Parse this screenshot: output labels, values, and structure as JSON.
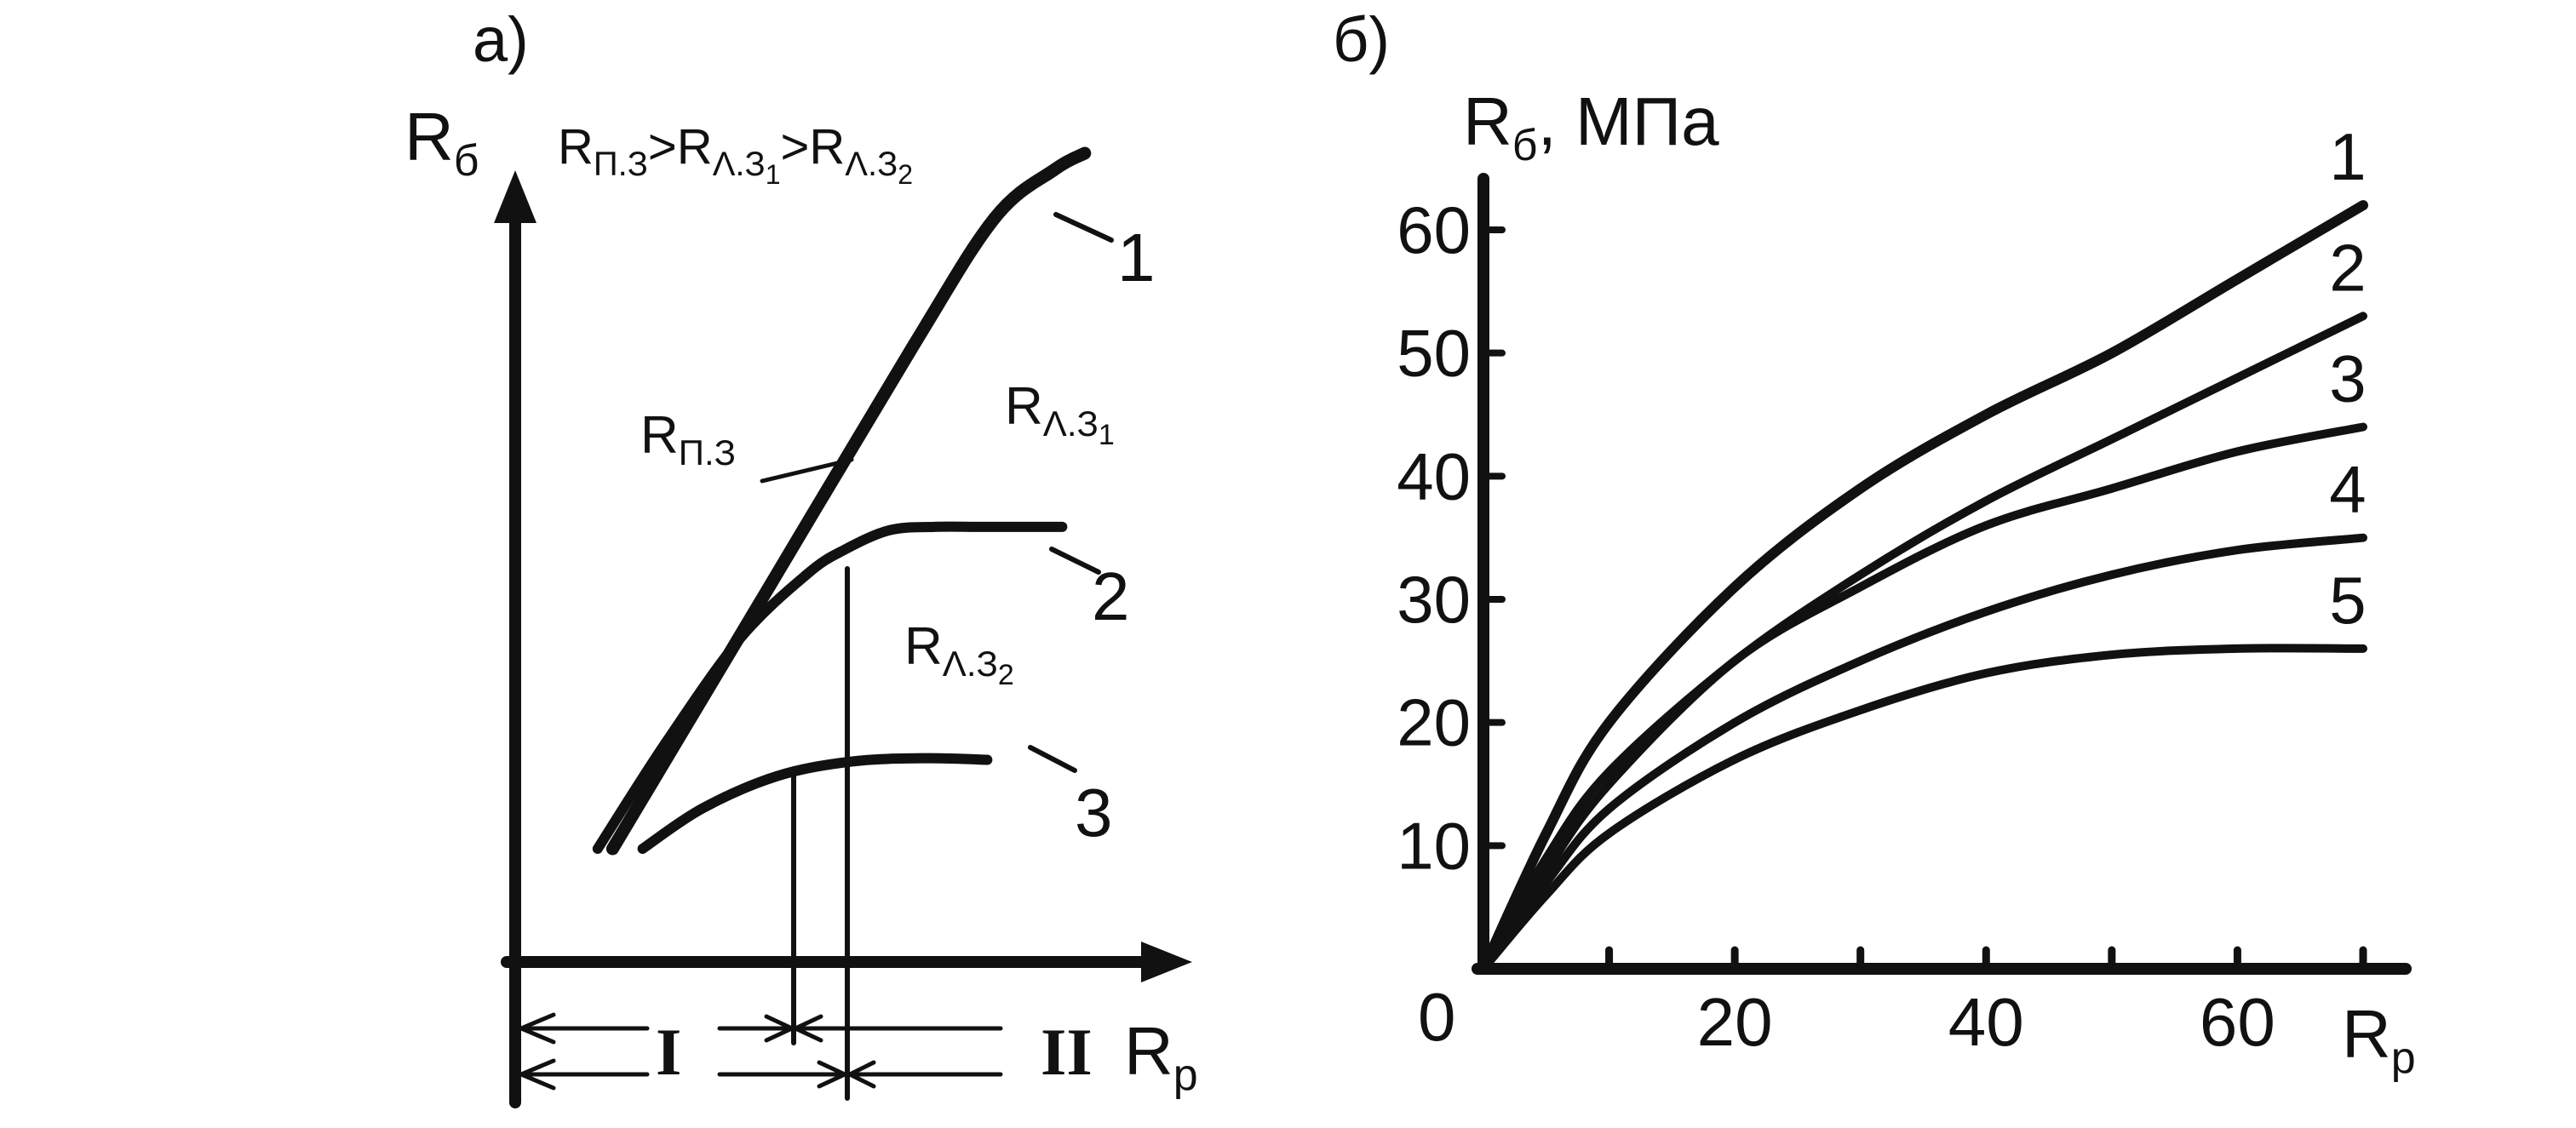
{
  "chart_data": [
    {
      "type": "line",
      "panel_label": "а)",
      "ylabel": "R",
      "ylabel_sub": "б",
      "xlabel": "R",
      "xlabel_sub": "p",
      "condition": {
        "a": "R",
        "a_sub": "П.З",
        "gt1": ">",
        "b": "R",
        "b_sub": "Λ.З",
        "b_sub2": "1",
        "gt2": ">",
        "c": "R",
        "c_sub": "Λ.З",
        "c_sub2": "2"
      },
      "region_labels": [
        {
          "main": "R",
          "sub": "П.З",
          "sub2": ""
        },
        {
          "main": "R",
          "sub": "Λ.З",
          "sub2": "1"
        },
        {
          "main": "R",
          "sub": "Λ.З",
          "sub2": "2"
        }
      ],
      "zones": [
        "I",
        "II"
      ],
      "series": [
        {
          "name": "1",
          "x": [
            0.13,
            0.33,
            0.53,
            0.64,
            0.72,
            0.76
          ],
          "y": [
            0.14,
            0.45,
            0.76,
            0.92,
            0.98,
            1.0
          ]
        },
        {
          "name": "2",
          "x": [
            0.11,
            0.2,
            0.3,
            0.39,
            0.44,
            0.5,
            0.56,
            0.62,
            0.68,
            0.73
          ],
          "y": [
            0.14,
            0.27,
            0.4,
            0.48,
            0.51,
            0.534,
            0.538,
            0.538,
            0.538,
            0.538
          ]
        },
        {
          "name": "3",
          "x": [
            0.17,
            0.25,
            0.35,
            0.45,
            0.55,
            0.63
          ],
          "y": [
            0.14,
            0.19,
            0.23,
            0.248,
            0.252,
            0.25
          ]
        }
      ],
      "boundaries_x": [
        0.43,
        0.49
      ]
    },
    {
      "type": "line",
      "panel_label": "б)",
      "ylabel": "R",
      "ylabel_sub": "б",
      "yunit": ", МПа",
      "xlabel": "R",
      "xlabel_sub": "p",
      "origin_label": "0",
      "xlim": [
        0,
        75
      ],
      "ylim": [
        0,
        65
      ],
      "x_ticks": [
        10,
        20,
        30,
        40,
        50,
        60,
        70
      ],
      "x_tick_labels": [
        {
          "value": 20,
          "label": "20"
        },
        {
          "value": 40,
          "label": "40"
        },
        {
          "value": 60,
          "label": "60"
        }
      ],
      "y_ticks": [
        {
          "value": 10,
          "label": "10"
        },
        {
          "value": 20,
          "label": "20"
        },
        {
          "value": 30,
          "label": "30"
        },
        {
          "value": 40,
          "label": "40"
        },
        {
          "value": 50,
          "label": "50"
        },
        {
          "value": 60,
          "label": "60"
        }
      ],
      "series": [
        {
          "name": "1",
          "x": [
            0,
            5,
            10,
            20,
            30,
            40,
            50,
            60,
            70
          ],
          "y": [
            0,
            11,
            20,
            31,
            39,
            45,
            50,
            56,
            62
          ]
        },
        {
          "name": "2",
          "x": [
            0,
            5,
            10,
            20,
            30,
            40,
            50,
            60,
            70
          ],
          "y": [
            0,
            9,
            16,
            25,
            32,
            38,
            43,
            48,
            53
          ]
        },
        {
          "name": "3",
          "x": [
            0,
            5,
            10,
            20,
            30,
            40,
            50,
            60,
            70
          ],
          "y": [
            0,
            8,
            15,
            25,
            31,
            36,
            39,
            42,
            44
          ]
        },
        {
          "name": "4",
          "x": [
            0,
            5,
            10,
            20,
            30,
            40,
            50,
            60,
            70
          ],
          "y": [
            0,
            7,
            13,
            20,
            25,
            29,
            32,
            34,
            35
          ]
        },
        {
          "name": "5",
          "x": [
            0,
            5,
            10,
            20,
            30,
            40,
            50,
            60,
            70
          ],
          "y": [
            0,
            6,
            11,
            17,
            21,
            24,
            25.5,
            26,
            26
          ]
        }
      ]
    }
  ]
}
